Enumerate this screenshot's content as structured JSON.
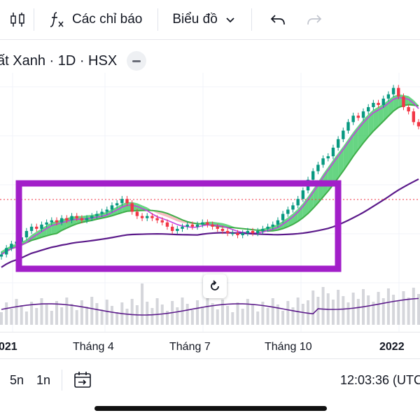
{
  "toolbar": {
    "indicators_label": "Các chỉ báo",
    "chart_type_label": "Biểu đồ",
    "icons": [
      "candles-icon",
      "fx-icon",
      "chevron-down-icon",
      "undo-icon",
      "redo-icon"
    ]
  },
  "legend": {
    "title": "ất Xanh · 1D · HSX"
  },
  "x_axis": {
    "labels": [
      "021",
      "Tháng 4",
      "Tháng 7",
      "Tháng 10",
      "2022"
    ]
  },
  "bottom_bar": {
    "ranges": [
      "5n",
      "1n"
    ],
    "clock": "12:03:36 (UTC"
  },
  "chart_data": {
    "type": "candlestick",
    "x_ticks": [
      "021",
      "Tháng 4",
      "Tháng 7",
      "Tháng 10",
      "2022"
    ],
    "close_series": [
      10,
      13,
      15,
      16,
      18,
      21,
      23,
      22,
      24,
      25,
      26,
      25,
      27,
      26,
      28,
      27,
      26,
      27,
      28,
      29,
      30,
      31,
      33,
      34,
      36,
      34,
      30,
      28,
      27,
      28,
      27,
      26,
      25,
      23,
      21,
      22,
      23,
      24,
      23,
      24,
      25,
      24,
      23,
      22,
      21,
      20,
      20,
      19,
      20,
      21,
      20,
      21,
      22,
      23,
      24,
      26,
      29,
      31,
      33,
      36,
      40,
      45,
      49,
      52,
      55,
      56,
      60,
      64,
      68,
      72,
      75,
      74,
      77,
      79,
      81,
      80,
      83,
      85,
      88,
      84,
      79,
      77,
      72,
      70
    ],
    "indicators": [
      "Ichimoku cloud",
      "moving averages",
      "volume"
    ],
    "annotation": "highlight rectangle around sideways range"
  },
  "colors": {
    "up": "#089981",
    "down": "#f23645",
    "cloud_up": "#34c759",
    "cloud_down": "#f4a6ad",
    "ma_green": "#3fae49",
    "ma_purple": "#5b1a8a",
    "highlight": "#a21fc9",
    "volume": "#b2b5be"
  }
}
